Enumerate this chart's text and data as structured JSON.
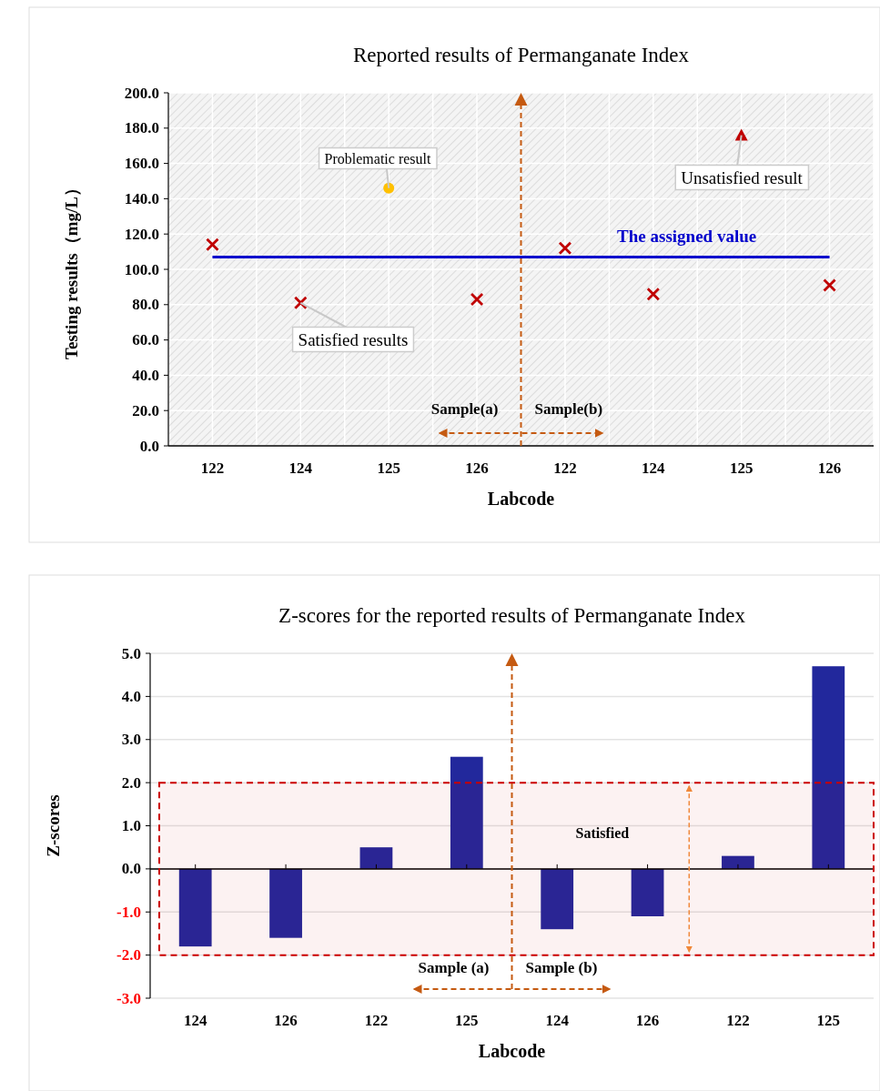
{
  "chart_data": [
    {
      "type": "scatter",
      "title": "Reported results of Permanganate Index",
      "xlabel": "Labcode",
      "ylabel": "Testing results（mg/L）",
      "categories": [
        "122",
        "124",
        "125",
        "126",
        "122",
        "124",
        "125",
        "126"
      ],
      "series": [
        {
          "color": "#c00000",
          "marker": "cross",
          "values": [
            114,
            81,
            null,
            83,
            112,
            86,
            null,
            91
          ]
        },
        {
          "color": "#ffc000",
          "marker": "circle",
          "values": [
            null,
            null,
            146,
            null,
            null,
            null,
            null,
            null
          ]
        },
        {
          "color": "#c00000",
          "marker": "triangle",
          "values": [
            null,
            null,
            null,
            null,
            null,
            null,
            176,
            null
          ]
        }
      ],
      "ylim": [
        0,
        200
      ],
      "yticks": [
        {
          "value": 0,
          "label": "0.0"
        },
        {
          "value": 20,
          "label": "20.0"
        },
        {
          "value": 40,
          "label": "40.0"
        },
        {
          "value": 60,
          "label": "60.0"
        },
        {
          "value": 80,
          "label": "80.0"
        },
        {
          "value": 100,
          "label": "100.0"
        },
        {
          "value": 120,
          "label": "120.0"
        },
        {
          "value": 140,
          "label": "140.0"
        },
        {
          "value": 160,
          "label": "160.0"
        },
        {
          "value": 180,
          "label": "180.0"
        },
        {
          "value": 200,
          "label": "200.0"
        }
      ],
      "ref_lines": [
        {
          "axis": "y",
          "value": 107,
          "label": "The assigned value",
          "color": "#0000cc",
          "line_style": "solid"
        }
      ],
      "annotations": [
        {
          "text": "Problematic result",
          "x": "125",
          "y": 146
        },
        {
          "text": "Unsatisfied result",
          "y": 176
        },
        {
          "text": "Satisfied results",
          "x": "124",
          "y": 81
        },
        "Sample(a)",
        "Sample(b)"
      ],
      "grid": true
    },
    {
      "type": "bar",
      "title": "Z-scores for the reported results of Permanganate Index",
      "xlabel": "Labcode",
      "ylabel": "Z-scores",
      "categories": [
        "124",
        "126",
        "122",
        "125",
        "124",
        "126",
        "122",
        "125"
      ],
      "values": [
        -1.8,
        -1.6,
        0.5,
        2.6,
        -1.4,
        -1.1,
        0.3,
        4.7
      ],
      "color": "#22289c",
      "ylim": [
        -3,
        5
      ],
      "yticks": [
        {
          "value": -3,
          "label": "-3.0"
        },
        {
          "value": -2,
          "label": "-2.0"
        },
        {
          "value": -1,
          "label": "-1.0"
        },
        {
          "value": 0,
          "label": "0.0"
        },
        {
          "value": 1,
          "label": "1.0"
        },
        {
          "value": 2,
          "label": "2.0"
        },
        {
          "value": 3,
          "label": "3.0"
        },
        {
          "value": 4,
          "label": "4.0"
        },
        {
          "value": 5,
          "label": "5.0"
        }
      ],
      "bands": [
        {
          "axis": "y",
          "from": -2,
          "to": 2,
          "label": "Satisfied",
          "color": "#cc0000"
        }
      ],
      "annotations": [
        "Sample (a)",
        "Sample (b)"
      ],
      "grid": "y"
    }
  ]
}
